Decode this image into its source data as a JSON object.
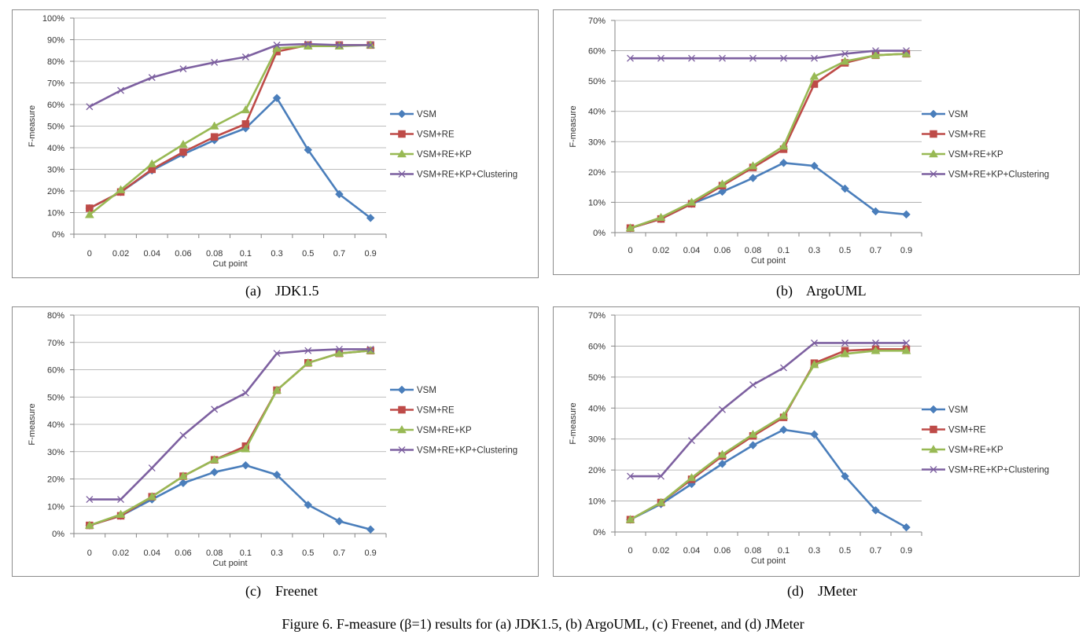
{
  "colors": {
    "VSM": "#4a7ebb",
    "VSM+RE": "#be4b48",
    "VSM+RE+KP": "#98b954",
    "VSM+RE+KP+Clustering": "#7d60a0"
  },
  "figure_caption": "Figure 6.    F-measure (β=1) results for (a) JDK1.5, (b) ArgoUML, (c) Freenet, and (d) JMeter",
  "chart_data": [
    {
      "id": "a",
      "type": "line",
      "caption": "(a)    JDK1.5",
      "xlabel": "Cut point",
      "ylabel": "F-measure",
      "categories": [
        "0",
        "0.02",
        "0.04",
        "0.06",
        "0.08",
        "0.1",
        "0.3",
        "0.5",
        "0.7",
        "0.9"
      ],
      "ylim": [
        0,
        100
      ],
      "ystep": 10,
      "legend": "right",
      "series": [
        {
          "name": "VSM",
          "marker": "diamond",
          "values": [
            12,
            19.5,
            29.5,
            37,
            43.5,
            49,
            63,
            39,
            18.5,
            7.5
          ]
        },
        {
          "name": "VSM+RE",
          "marker": "square",
          "values": [
            12,
            19.5,
            30,
            38,
            45,
            51,
            84.5,
            87.5,
            87.5,
            87.5
          ]
        },
        {
          "name": "VSM+RE+KP",
          "marker": "triangle",
          "values": [
            9,
            20.5,
            32.5,
            41.5,
            50,
            57.5,
            86,
            87,
            87,
            87.5
          ]
        },
        {
          "name": "VSM+RE+KP+Clustering",
          "marker": "x",
          "values": [
            59,
            66.5,
            72.5,
            76.5,
            79.5,
            82,
            87.5,
            88,
            87.5,
            87.5
          ]
        }
      ]
    },
    {
      "id": "b",
      "type": "line",
      "caption": "(b)    ArgoUML",
      "xlabel": "Cut point",
      "ylabel": "F-measure",
      "categories": [
        "0",
        "0.02",
        "0.04",
        "0.06",
        "0.08",
        "0.1",
        "0.3",
        "0.5",
        "0.7",
        "0.9"
      ],
      "ylim": [
        0,
        70
      ],
      "ystep": 10,
      "legend": "right",
      "series": [
        {
          "name": "VSM",
          "marker": "diamond",
          "values": [
            1.5,
            4.5,
            9.5,
            13.5,
            18,
            23,
            22,
            14.5,
            7,
            6
          ]
        },
        {
          "name": "VSM+RE",
          "marker": "square",
          "values": [
            1.5,
            4.5,
            9.5,
            15.5,
            21.5,
            27.5,
            49,
            56,
            58.5,
            59
          ]
        },
        {
          "name": "VSM+RE+KP",
          "marker": "triangle",
          "values": [
            1.5,
            5,
            10,
            16,
            22,
            28.5,
            51.5,
            56.5,
            58.5,
            59
          ]
        },
        {
          "name": "VSM+RE+KP+Clustering",
          "marker": "x",
          "values": [
            57.5,
            57.5,
            57.5,
            57.5,
            57.5,
            57.5,
            57.5,
            59,
            60,
            60
          ]
        }
      ]
    },
    {
      "id": "c",
      "type": "line",
      "caption": "(c)    Freenet",
      "xlabel": "Cut point",
      "ylabel": "F-measure",
      "categories": [
        "0",
        "0.02",
        "0.04",
        "0.06",
        "0.08",
        "0.1",
        "0.3",
        "0.5",
        "0.7",
        "0.9"
      ],
      "ylim": [
        0,
        80
      ],
      "ystep": 10,
      "legend": "right",
      "series": [
        {
          "name": "VSM",
          "marker": "diamond",
          "values": [
            3,
            6.5,
            12.5,
            18.5,
            22.5,
            25,
            21.5,
            10.5,
            4.5,
            1.5
          ]
        },
        {
          "name": "VSM+RE",
          "marker": "square",
          "values": [
            3,
            6.5,
            13.5,
            21,
            27,
            32,
            52.5,
            62.5,
            66,
            67
          ]
        },
        {
          "name": "VSM+RE+KP",
          "marker": "triangle",
          "values": [
            3,
            7,
            13.5,
            21,
            27,
            31,
            52.5,
            62.5,
            66,
            67
          ]
        },
        {
          "name": "VSM+RE+KP+Clustering",
          "marker": "x",
          "values": [
            12.5,
            12.5,
            24,
            36,
            45.5,
            51.5,
            66,
            67,
            67.5,
            67.5
          ]
        }
      ]
    },
    {
      "id": "d",
      "type": "line",
      "caption": "(d)    JMeter",
      "xlabel": "Cut point",
      "ylabel": "F-measure",
      "categories": [
        "0",
        "0.02",
        "0.04",
        "0.06",
        "0.08",
        "0.1",
        "0.3",
        "0.5",
        "0.7",
        "0.9"
      ],
      "ylim": [
        0,
        70
      ],
      "ystep": 10,
      "legend": "right",
      "series": [
        {
          "name": "VSM",
          "marker": "diamond",
          "values": [
            4,
            9,
            15.5,
            22,
            28,
            33,
            31.5,
            18,
            7,
            1.5
          ]
        },
        {
          "name": "VSM+RE",
          "marker": "square",
          "values": [
            4,
            9.5,
            17,
            24.5,
            31,
            37,
            54.5,
            58.5,
            59,
            59
          ]
        },
        {
          "name": "VSM+RE+KP",
          "marker": "triangle",
          "values": [
            4,
            9.5,
            17.5,
            25,
            31.5,
            37.5,
            54,
            57.5,
            58.5,
            58.5
          ]
        },
        {
          "name": "VSM+RE+KP+Clustering",
          "marker": "x",
          "values": [
            18,
            18,
            29.5,
            39.5,
            47.5,
            53,
            61,
            61,
            61,
            61
          ]
        }
      ]
    }
  ]
}
